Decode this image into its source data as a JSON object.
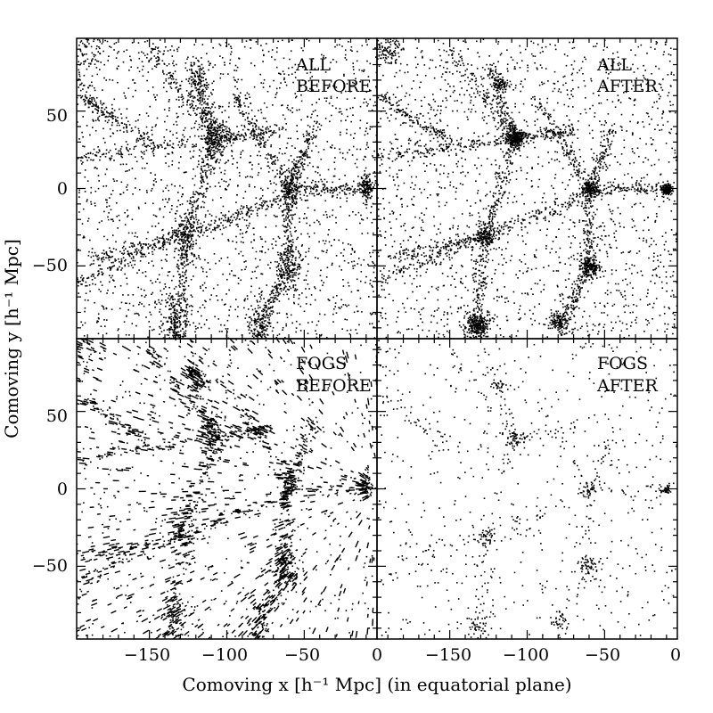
{
  "chart_data": {
    "type": "scatter",
    "layout": "2x2 panel grid sharing axes",
    "xlabel": "Comoving x [h⁻¹ Mpc] (in equatorial plane)",
    "ylabel": "Comoving y [h⁻¹ Mpc]",
    "xlim": [
      -197,
      -3
    ],
    "ylim": [
      -97,
      97
    ],
    "x_ticks_major": [
      -150,
      -100,
      -50,
      0
    ],
    "x_tick_labels": [
      "−150",
      "−100",
      "−50",
      "0"
    ],
    "y_ticks_major": [
      -50,
      0,
      50
    ],
    "y_tick_labels": [
      "−50",
      "0",
      "50"
    ],
    "marker_color": "#000000",
    "panels": [
      {
        "id": "all-before",
        "label_line1": "ALL",
        "label_line2": "BEFORE",
        "point_count": 5200,
        "field_fraction": 0.36
      },
      {
        "id": "all-after",
        "label_line1": "ALL",
        "label_line2": "AFTER",
        "point_count": 5000,
        "field_fraction": 0.36
      },
      {
        "id": "fogs-before",
        "label_line1": "FOGS",
        "label_line2": "BEFORE",
        "point_count": 2600,
        "field_fraction": 0.4
      },
      {
        "id": "fogs-after",
        "label_line1": "FOGS",
        "label_line2": "AFTER",
        "point_count": 1200,
        "field_fraction": 0.45
      }
    ],
    "structures": {
      "clusters": [
        {
          "x": -108,
          "y": 33,
          "sigma": 4,
          "weight": 3
        },
        {
          "x": -132,
          "y": -88,
          "sigma": 5,
          "weight": 3
        },
        {
          "x": -127,
          "y": -30,
          "sigma": 4,
          "weight": 2
        },
        {
          "x": -60,
          "y": 0,
          "sigma": 3,
          "weight": 2
        },
        {
          "x": -60,
          "y": -50,
          "sigma": 4,
          "weight": 2.5
        },
        {
          "x": -10,
          "y": 0,
          "sigma": 2,
          "weight": 2
        },
        {
          "x": -118,
          "y": 68,
          "sigma": 3,
          "weight": 1.2
        },
        {
          "x": -80,
          "y": -85,
          "sigma": 4,
          "weight": 1.5
        },
        {
          "x": -190,
          "y": 90,
          "sigma": 6,
          "weight": 1.2
        }
      ],
      "filaments": [
        [
          -195,
          20,
          -108,
          33
        ],
        [
          -108,
          33,
          -70,
          38
        ],
        [
          -108,
          33,
          -125,
          80
        ],
        [
          -108,
          33,
          -127,
          -30
        ],
        [
          -127,
          -30,
          -135,
          -95
        ],
        [
          -127,
          -30,
          -190,
          -45
        ],
        [
          -60,
          0,
          -10,
          0
        ],
        [
          -60,
          0,
          -62,
          -50
        ],
        [
          -62,
          -50,
          -80,
          -95
        ],
        [
          -60,
          0,
          -95,
          60
        ],
        [
          -127,
          -30,
          -65,
          -5
        ],
        [
          -195,
          -60,
          -130,
          -30
        ],
        [
          -150,
          90,
          -108,
          33
        ],
        [
          -45,
          40,
          -60,
          0
        ],
        [
          -195,
          60,
          -150,
          30
        ]
      ]
    }
  }
}
